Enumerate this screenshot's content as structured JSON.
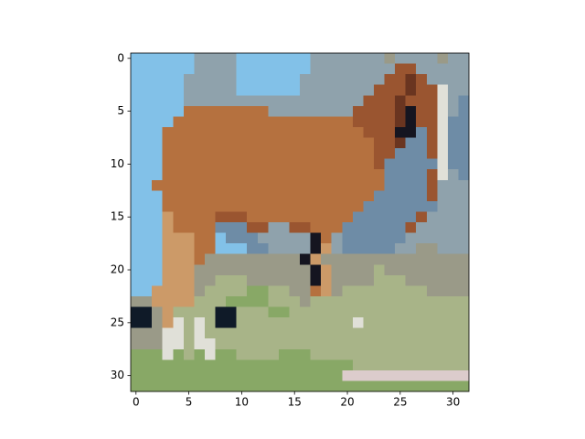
{
  "chart_data": {
    "type": "image",
    "palette": [
      "#82c1e8",
      "#92c9e8",
      "#8fa2ac",
      "#6e8ca6",
      "#b5713f",
      "#9a5530",
      "#6a3520",
      "#151520",
      "#e0e0d8",
      "#cc9a68",
      "#a8b488",
      "#88a866",
      "#9a9a88",
      "#dccccc",
      "#0f1a28"
    ],
    "pixels": [
      [
        0,
        0,
        0,
        0,
        0,
        0,
        2,
        2,
        2,
        2,
        0,
        0,
        0,
        0,
        0,
        0,
        0,
        2,
        2,
        2,
        2,
        2,
        2,
        2,
        12,
        2,
        2,
        2,
        2,
        12,
        2,
        2
      ],
      [
        0,
        0,
        0,
        0,
        0,
        0,
        2,
        2,
        2,
        2,
        0,
        0,
        0,
        0,
        0,
        0,
        0,
        2,
        2,
        2,
        2,
        2,
        2,
        2,
        2,
        5,
        5,
        2,
        2,
        2,
        2,
        2
      ],
      [
        0,
        0,
        0,
        0,
        0,
        2,
        2,
        2,
        2,
        2,
        0,
        0,
        0,
        0,
        0,
        0,
        2,
        2,
        2,
        2,
        2,
        2,
        2,
        2,
        5,
        5,
        6,
        5,
        2,
        2,
        2,
        2
      ],
      [
        0,
        0,
        0,
        0,
        0,
        2,
        2,
        2,
        2,
        2,
        0,
        0,
        0,
        0,
        0,
        0,
        2,
        2,
        2,
        2,
        2,
        2,
        2,
        5,
        5,
        5,
        6,
        5,
        5,
        8,
        2,
        2
      ],
      [
        0,
        0,
        0,
        0,
        0,
        2,
        2,
        2,
        2,
        2,
        2,
        2,
        2,
        2,
        2,
        2,
        2,
        2,
        2,
        2,
        2,
        2,
        5,
        5,
        5,
        6,
        5,
        5,
        5,
        8,
        2,
        3
      ],
      [
        0,
        0,
        0,
        0,
        0,
        4,
        4,
        4,
        4,
        4,
        4,
        4,
        4,
        2,
        2,
        2,
        2,
        2,
        2,
        2,
        2,
        5,
        5,
        5,
        5,
        6,
        7,
        5,
        5,
        8,
        2,
        3
      ],
      [
        0,
        0,
        0,
        0,
        4,
        4,
        4,
        4,
        4,
        4,
        4,
        4,
        4,
        4,
        4,
        4,
        4,
        4,
        4,
        4,
        4,
        5,
        5,
        5,
        5,
        6,
        7,
        5,
        5,
        8,
        3,
        3
      ],
      [
        0,
        0,
        0,
        4,
        4,
        4,
        4,
        4,
        4,
        4,
        4,
        4,
        4,
        4,
        4,
        4,
        4,
        4,
        4,
        4,
        4,
        4,
        5,
        5,
        5,
        7,
        7,
        3,
        5,
        8,
        3,
        3
      ],
      [
        0,
        0,
        0,
        4,
        4,
        4,
        4,
        4,
        4,
        4,
        4,
        4,
        4,
        4,
        4,
        4,
        4,
        4,
        4,
        4,
        4,
        4,
        4,
        5,
        5,
        6,
        3,
        3,
        5,
        8,
        3,
        3
      ],
      [
        0,
        0,
        0,
        4,
        4,
        4,
        4,
        4,
        4,
        4,
        4,
        4,
        4,
        4,
        4,
        4,
        4,
        4,
        4,
        4,
        4,
        4,
        4,
        5,
        5,
        3,
        3,
        3,
        5,
        8,
        3,
        3
      ],
      [
        0,
        0,
        0,
        4,
        4,
        4,
        4,
        4,
        4,
        4,
        4,
        4,
        4,
        4,
        4,
        4,
        4,
        4,
        4,
        4,
        4,
        4,
        4,
        5,
        3,
        3,
        3,
        3,
        3,
        8,
        3,
        3
      ],
      [
        0,
        0,
        0,
        4,
        4,
        4,
        4,
        4,
        4,
        4,
        4,
        4,
        4,
        4,
        4,
        4,
        4,
        4,
        4,
        4,
        4,
        4,
        4,
        4,
        3,
        3,
        3,
        3,
        5,
        8,
        2,
        3
      ],
      [
        0,
        0,
        4,
        4,
        4,
        4,
        4,
        4,
        4,
        4,
        4,
        4,
        4,
        4,
        4,
        4,
        4,
        4,
        4,
        4,
        4,
        4,
        4,
        4,
        3,
        3,
        3,
        3,
        5,
        2,
        2,
        2
      ],
      [
        0,
        0,
        0,
        4,
        4,
        4,
        4,
        4,
        4,
        4,
        4,
        4,
        4,
        4,
        4,
        4,
        4,
        4,
        4,
        4,
        4,
        4,
        4,
        3,
        3,
        3,
        3,
        3,
        5,
        2,
        2,
        2
      ],
      [
        0,
        0,
        0,
        4,
        4,
        4,
        4,
        4,
        4,
        4,
        4,
        4,
        4,
        4,
        4,
        4,
        4,
        4,
        4,
        4,
        4,
        4,
        3,
        3,
        3,
        3,
        3,
        3,
        3,
        2,
        2,
        2
      ],
      [
        0,
        0,
        0,
        9,
        4,
        4,
        4,
        4,
        5,
        5,
        5,
        4,
        4,
        4,
        4,
        4,
        4,
        4,
        4,
        4,
        4,
        3,
        3,
        3,
        3,
        3,
        3,
        5,
        2,
        2,
        2,
        2
      ],
      [
        0,
        0,
        0,
        9,
        4,
        4,
        4,
        4,
        3,
        3,
        3,
        5,
        5,
        2,
        2,
        5,
        5,
        4,
        4,
        4,
        3,
        3,
        3,
        3,
        3,
        3,
        5,
        2,
        2,
        2,
        2,
        2
      ],
      [
        0,
        0,
        0,
        9,
        9,
        9,
        4,
        4,
        0,
        3,
        3,
        3,
        2,
        2,
        2,
        2,
        2,
        7,
        4,
        2,
        3,
        3,
        3,
        3,
        3,
        3,
        2,
        2,
        2,
        2,
        2,
        2
      ],
      [
        0,
        0,
        0,
        9,
        9,
        9,
        4,
        4,
        0,
        0,
        0,
        3,
        3,
        2,
        2,
        2,
        2,
        7,
        9,
        2,
        3,
        3,
        3,
        3,
        3,
        2,
        2,
        12,
        12,
        2,
        2,
        2
      ],
      [
        0,
        0,
        0,
        9,
        9,
        9,
        4,
        12,
        12,
        12,
        12,
        12,
        12,
        12,
        12,
        12,
        7,
        9,
        12,
        12,
        12,
        12,
        12,
        12,
        12,
        12,
        12,
        12,
        12,
        12,
        12,
        12
      ],
      [
        0,
        0,
        0,
        9,
        9,
        9,
        12,
        12,
        12,
        12,
        12,
        12,
        12,
        12,
        12,
        12,
        12,
        7,
        9,
        12,
        12,
        12,
        12,
        10,
        12,
        12,
        12,
        12,
        12,
        12,
        12,
        12
      ],
      [
        0,
        0,
        0,
        9,
        9,
        9,
        12,
        12,
        10,
        10,
        10,
        12,
        12,
        12,
        12,
        12,
        12,
        7,
        9,
        12,
        12,
        12,
        12,
        10,
        10,
        10,
        12,
        12,
        12,
        12,
        12,
        12
      ],
      [
        0,
        0,
        9,
        9,
        9,
        9,
        12,
        10,
        10,
        10,
        10,
        11,
        11,
        10,
        10,
        12,
        12,
        4,
        9,
        12,
        10,
        10,
        10,
        10,
        10,
        10,
        10,
        10,
        12,
        12,
        12,
        12
      ],
      [
        12,
        12,
        9,
        9,
        9,
        9,
        10,
        10,
        10,
        11,
        11,
        11,
        11,
        10,
        10,
        10,
        12,
        10,
        10,
        10,
        10,
        10,
        10,
        10,
        10,
        10,
        10,
        10,
        10,
        10,
        10,
        10
      ],
      [
        14,
        14,
        12,
        9,
        10,
        10,
        10,
        10,
        14,
        14,
        10,
        10,
        10,
        11,
        11,
        10,
        10,
        10,
        10,
        10,
        10,
        10,
        10,
        10,
        10,
        10,
        10,
        10,
        10,
        10,
        10,
        10
      ],
      [
        14,
        14,
        12,
        9,
        8,
        10,
        8,
        10,
        14,
        14,
        10,
        10,
        10,
        10,
        10,
        10,
        10,
        10,
        10,
        10,
        10,
        8,
        10,
        10,
        10,
        10,
        10,
        10,
        10,
        10,
        10,
        10
      ],
      [
        12,
        12,
        12,
        8,
        8,
        10,
        8,
        10,
        10,
        10,
        10,
        10,
        10,
        10,
        10,
        10,
        10,
        10,
        10,
        10,
        10,
        10,
        10,
        10,
        10,
        10,
        10,
        10,
        10,
        10,
        10,
        10
      ],
      [
        12,
        12,
        12,
        8,
        8,
        10,
        8,
        8,
        10,
        10,
        10,
        10,
        10,
        10,
        10,
        10,
        10,
        10,
        10,
        10,
        10,
        10,
        10,
        10,
        10,
        10,
        10,
        10,
        10,
        10,
        10,
        10
      ],
      [
        11,
        11,
        11,
        8,
        11,
        10,
        11,
        8,
        11,
        11,
        10,
        10,
        10,
        10,
        11,
        11,
        11,
        10,
        10,
        10,
        10,
        10,
        10,
        10,
        10,
        10,
        10,
        10,
        10,
        10,
        10,
        10
      ],
      [
        11,
        11,
        11,
        11,
        11,
        11,
        11,
        11,
        11,
        11,
        11,
        11,
        11,
        11,
        11,
        11,
        11,
        11,
        11,
        11,
        11,
        10,
        10,
        10,
        10,
        10,
        10,
        10,
        10,
        10,
        10,
        10
      ],
      [
        11,
        11,
        11,
        11,
        11,
        11,
        11,
        11,
        11,
        11,
        11,
        11,
        11,
        11,
        11,
        11,
        11,
        11,
        11,
        11,
        13,
        13,
        13,
        13,
        13,
        13,
        13,
        13,
        13,
        13,
        13,
        13
      ],
      [
        11,
        11,
        11,
        11,
        11,
        11,
        11,
        11,
        11,
        11,
        11,
        11,
        11,
        11,
        11,
        11,
        11,
        11,
        11,
        11,
        11,
        11,
        11,
        11,
        11,
        11,
        11,
        11,
        11,
        11,
        11,
        11
      ]
    ],
    "xlim": [
      -0.5,
      31.5
    ],
    "ylim": [
      31.5,
      -0.5
    ],
    "xticks": [
      0,
      5,
      10,
      15,
      20,
      25,
      30
    ],
    "yticks": [
      0,
      5,
      10,
      15,
      20,
      25,
      30
    ]
  }
}
